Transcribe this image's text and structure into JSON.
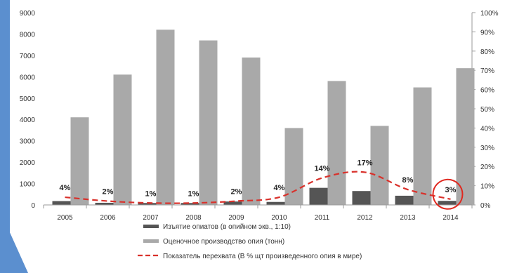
{
  "chart_data": {
    "type": "bar",
    "categories": [
      "2005",
      "2006",
      "2007",
      "2008",
      "2009",
      "2010",
      "2011",
      "2012",
      "2013",
      "2014"
    ],
    "series": [
      {
        "name": "Изъятие опиатов (в опийном экв., 1:10)",
        "kind": "bar",
        "axis": "left",
        "color": "#555555",
        "values": [
          180,
          100,
          90,
          90,
          160,
          140,
          800,
          650,
          430,
          190
        ]
      },
      {
        "name": "Оценочное производство опия (тонн)",
        "kind": "bar",
        "axis": "left",
        "color": "#a9a9a9",
        "values": [
          4100,
          6100,
          8200,
          7700,
          6900,
          3600,
          5800,
          3700,
          5500,
          6400
        ]
      },
      {
        "name": "Показатель перехвата (В % щт произведенного опия в мире)",
        "kind": "line",
        "axis": "right",
        "color": "#d9312b",
        "values": [
          4,
          2,
          1,
          1,
          2,
          4,
          14,
          17,
          8,
          3
        ]
      }
    ],
    "data_labels": [
      "4%",
      "2%",
      "1%",
      "1%",
      "2%",
      "4%",
      "14%",
      "17%",
      "8%",
      "3%"
    ],
    "left_axis": {
      "min": 0,
      "max": 9000,
      "ticks": [
        "0",
        "1000",
        "2000",
        "3000",
        "4000",
        "5000",
        "6000",
        "7000",
        "8000",
        "9000"
      ]
    },
    "right_axis": {
      "min": 0,
      "max": 100,
      "ticks": [
        "0%",
        "10%",
        "20%",
        "30%",
        "40%",
        "50%",
        "60%",
        "70%",
        "80%",
        "90%",
        "100%"
      ]
    },
    "highlight_category": "2014",
    "grid": false,
    "legend_position": "bottom"
  }
}
